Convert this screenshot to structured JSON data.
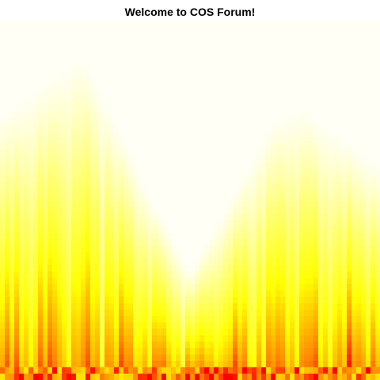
{
  "chart_data": {
    "type": "heatmap",
    "title": "Welcome to COS Forum!",
    "xlabel": "",
    "ylabel": "",
    "axes_visible": false,
    "legend": "none",
    "grid": false,
    "palette": [
      "#ff0000",
      "#ff8000",
      "#ffff00",
      "#ffffe0",
      "#fffff5"
    ],
    "description_of_field": "value rises with height; columns oscillate producing flame-like peaks",
    "rows": 56,
    "columns": 80,
    "peak_heights": [
      0.74,
      0.9,
      0.88,
      0.5,
      0.3,
      0.72,
      0.76,
      0.6
    ],
    "peak_positions": [
      0.0,
      0.2,
      0.23,
      0.4,
      0.5,
      0.72,
      0.8,
      1.0
    ],
    "value_range": [
      0,
      1
    ]
  }
}
